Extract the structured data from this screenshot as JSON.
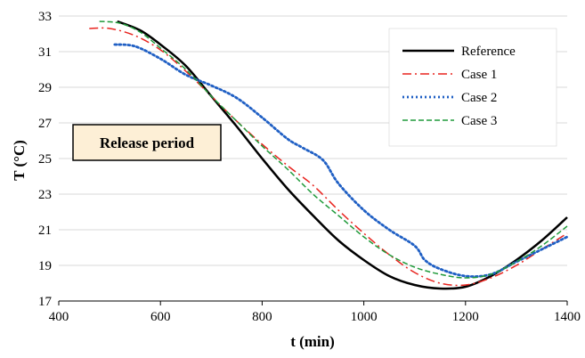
{
  "chart_data": {
    "type": "line",
    "title": "",
    "xlabel": "t (min)",
    "ylabel": "T (°C)",
    "xlim": [
      400,
      1400
    ],
    "ylim": [
      17,
      33
    ],
    "xticks": [
      400,
      600,
      800,
      1000,
      1200,
      1400
    ],
    "yticks": [
      17,
      19,
      21,
      23,
      25,
      27,
      29,
      31,
      33
    ],
    "grid": "horizontal",
    "legend_position": "top-right",
    "annotation": "Release period",
    "annotation_fill": "#fdefd6",
    "series": [
      {
        "name": "Reference",
        "color": "#000000",
        "dash": "solid",
        "x": [
          515,
          560,
          600,
          650,
          700,
          750,
          800,
          850,
          900,
          950,
          1000,
          1050,
          1100,
          1150,
          1200,
          1250,
          1300,
          1350,
          1400
        ],
        "y": [
          32.7,
          32.2,
          31.4,
          30.2,
          28.5,
          26.8,
          25.0,
          23.3,
          21.8,
          20.4,
          19.3,
          18.4,
          17.9,
          17.7,
          17.8,
          18.4,
          19.3,
          20.4,
          21.7
        ]
      },
      {
        "name": "Case 1",
        "color": "#e8241f",
        "dash": "dashdot",
        "x": [
          460,
          500,
          550,
          600,
          650,
          700,
          750,
          800,
          850,
          900,
          950,
          1000,
          1050,
          1100,
          1150,
          1200,
          1250,
          1300,
          1350,
          1400
        ],
        "y": [
          32.3,
          32.3,
          31.9,
          31.1,
          29.9,
          28.5,
          27.1,
          25.8,
          24.6,
          23.5,
          22.1,
          20.8,
          19.6,
          18.6,
          18.0,
          17.9,
          18.3,
          19.0,
          19.9,
          20.8
        ]
      },
      {
        "name": "Case 2",
        "color": "#1f5fc4",
        "dash": "dotted",
        "x": [
          510,
          550,
          600,
          650,
          700,
          750,
          800,
          850,
          880,
          920,
          950,
          1000,
          1050,
          1100,
          1120,
          1150,
          1200,
          1250,
          1300,
          1350,
          1400
        ],
        "y": [
          31.4,
          31.3,
          30.6,
          29.7,
          29.1,
          28.4,
          27.3,
          26.1,
          25.6,
          24.9,
          23.6,
          22.1,
          21.0,
          20.1,
          19.3,
          18.8,
          18.4,
          18.5,
          19.2,
          19.9,
          20.6
        ]
      },
      {
        "name": "Case 3",
        "color": "#1f9a3a",
        "dash": "dashed",
        "x": [
          480,
          520,
          560,
          600,
          650,
          700,
          750,
          800,
          850,
          900,
          950,
          1000,
          1050,
          1100,
          1150,
          1200,
          1250,
          1300,
          1350,
          1400
        ],
        "y": [
          32.7,
          32.6,
          32.1,
          31.2,
          30.0,
          28.5,
          27.1,
          25.7,
          24.4,
          23.0,
          21.8,
          20.6,
          19.6,
          18.9,
          18.5,
          18.3,
          18.5,
          19.2,
          20.1,
          21.2
        ]
      }
    ]
  }
}
